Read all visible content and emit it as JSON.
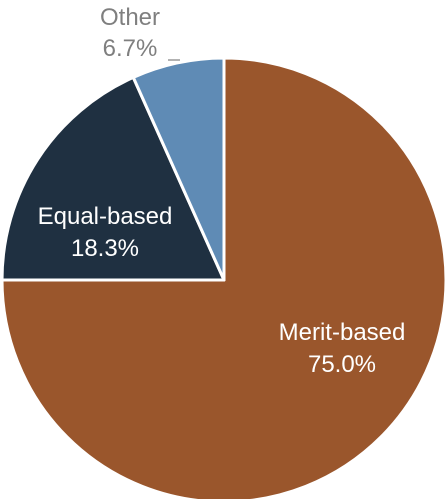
{
  "chart_data": {
    "type": "pie",
    "title": "",
    "legend": "none",
    "start_angle": "12 o'clock, clockwise",
    "slices": [
      {
        "name": "Merit-based",
        "value": 75.0,
        "label": "75.0%",
        "color": "#9A562C",
        "label_color": "#FFFFFF"
      },
      {
        "name": "Equal-based",
        "value": 18.3,
        "label": "18.3%",
        "color": "#1F3041",
        "label_color": "#FFFFFF"
      },
      {
        "name": "Other",
        "value": 6.7,
        "label": "6.7%",
        "color": "#5F8BB5",
        "label_color": "#7F7F7F"
      }
    ]
  }
}
